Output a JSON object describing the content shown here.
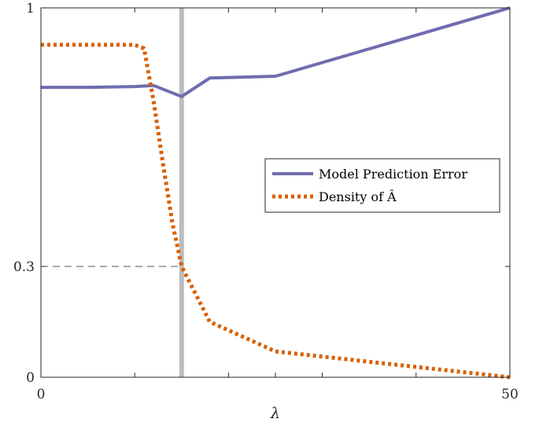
{
  "chart_data": {
    "type": "line",
    "xlabel": "λ",
    "ylabel": "",
    "xlim": [
      0,
      50
    ],
    "ylim": [
      0,
      1
    ],
    "x_ticks": [
      {
        "value": 0,
        "label": "0"
      },
      {
        "value": 50,
        "label": "50"
      }
    ],
    "x_minor_ticks": [
      10,
      20,
      25,
      30,
      40
    ],
    "y_ticks": [
      {
        "value": 0,
        "label": "0"
      },
      {
        "value": 0.3,
        "label": "0.3"
      },
      {
        "value": 1,
        "label": "1"
      }
    ],
    "vertical_marker": {
      "x": 15,
      "color": "#bdbdbd"
    },
    "reference_line": {
      "y": 0.3,
      "x_from": 0,
      "x_to": 15,
      "style": "dashed",
      "color": "#555555"
    },
    "legend_position": "right",
    "series": [
      {
        "name": "Model Prediction Error",
        "style": "solid",
        "color": "#6f6cb0",
        "x": [
          0,
          5,
          10,
          12,
          15,
          18,
          25,
          50
        ],
        "y": [
          0.785,
          0.785,
          0.787,
          0.79,
          0.76,
          0.81,
          0.815,
          1.0
        ]
      },
      {
        "name": "Density of Â",
        "style": "dotted",
        "color": "#d95f02",
        "x": [
          0,
          5,
          10,
          11,
          12,
          13,
          14,
          15,
          18,
          25,
          50
        ],
        "y": [
          0.9,
          0.9,
          0.9,
          0.89,
          0.75,
          0.58,
          0.42,
          0.3,
          0.15,
          0.07,
          0.0
        ]
      }
    ]
  }
}
